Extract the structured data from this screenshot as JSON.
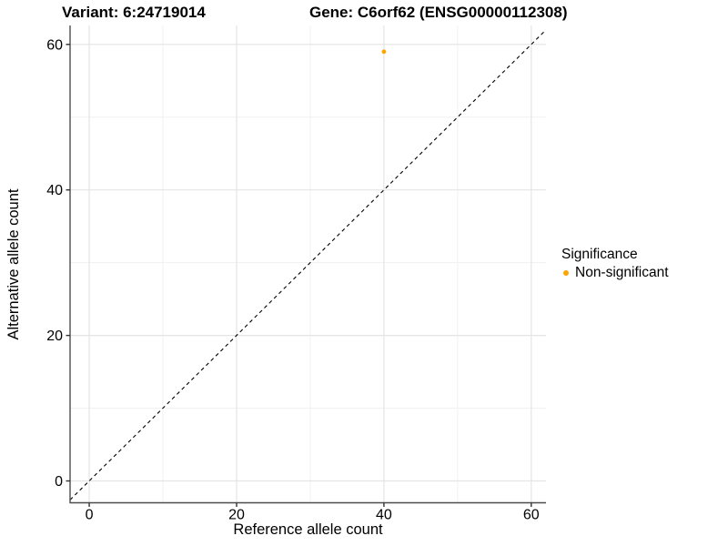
{
  "titles": {
    "variant": "Variant: 6:24719014",
    "gene": "Gene: C6orf62 (ENSG00000112308)"
  },
  "axes": {
    "x": {
      "label": "Reference allele count",
      "tick_labels": [
        "0",
        "20",
        "40",
        "60"
      ]
    },
    "y": {
      "label": "Alternative allele count",
      "tick_labels": [
        "0",
        "20",
        "40",
        "60"
      ]
    }
  },
  "legend": {
    "title": "Significance",
    "items": [
      {
        "label": "Non-significant",
        "color": "#FFA500"
      }
    ]
  },
  "colors": {
    "background": "#FFFFFF",
    "point": "#FFA500",
    "grid_major": "#E4E4E4",
    "grid_minor": "#F1F1F1",
    "axis_line": "#4D4D4D",
    "tick_mark": "#333333",
    "text": "#000000",
    "reference_line": "#000000"
  },
  "chart_data": {
    "type": "scatter",
    "title": "Variant: 6:24719014 | Gene: C6orf62 (ENSG00000112308)",
    "xlabel": "Reference allele count",
    "ylabel": "Alternative allele count",
    "xlim": [
      -2.6,
      62
    ],
    "ylim": [
      -3,
      62.6
    ],
    "x_ticks": [
      0,
      20,
      40,
      60
    ],
    "y_ticks": [
      0,
      20,
      40,
      60
    ],
    "x_minor_ticks": [
      10,
      30,
      50
    ],
    "y_minor_ticks": [
      10,
      30,
      50
    ],
    "grid": true,
    "legend_position": "right-center",
    "series": [
      {
        "name": "Non-significant",
        "color": "#FFA500",
        "points": [
          {
            "x": 40,
            "y": 59
          }
        ]
      }
    ],
    "reference_line": {
      "kind": "identity",
      "equation": "y = x",
      "style": "dashed",
      "color": "#000000"
    }
  }
}
